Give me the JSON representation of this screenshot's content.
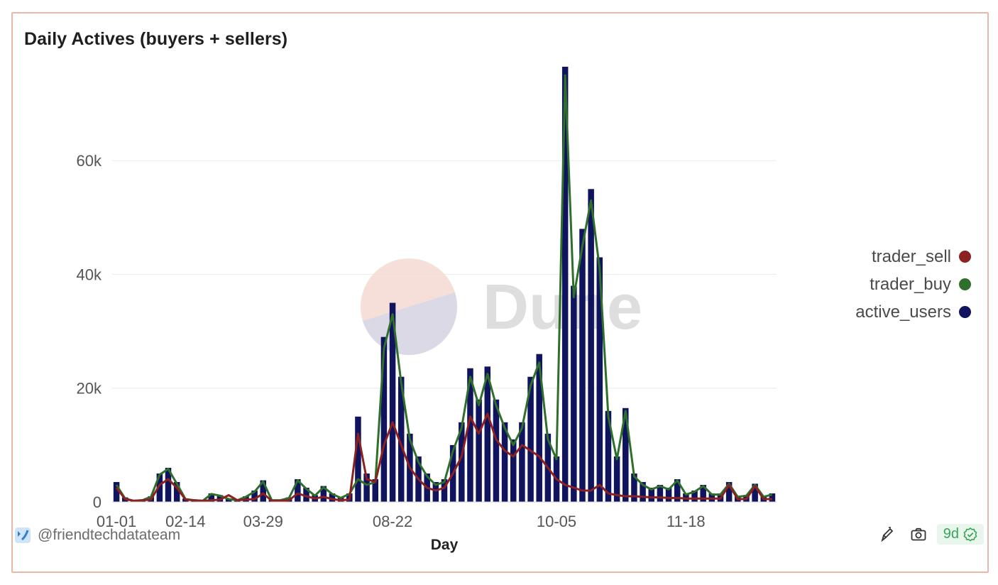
{
  "header": {
    "title": "Daily Actives (buyers + sellers)"
  },
  "watermark": {
    "text": "Dune"
  },
  "footer": {
    "author": "@friendtechdatateam",
    "age": "9d"
  },
  "colors": {
    "trader_sell": "#8b2121",
    "trader_buy": "#2f6e2b",
    "active_users": "#10135e",
    "watermark_top": "#f6d9d2",
    "watermark_bottom": "#d8d8e8"
  },
  "icons": [
    "friendtech-logo-icon",
    "share-icon",
    "camera-icon",
    "check-circle-icon"
  ],
  "chart_data": {
    "type": "bar",
    "title": "Daily Actives (buyers + sellers)",
    "xlabel": "Day",
    "ylabel": "",
    "ylim": [
      0,
      77000
    ],
    "yticks": [
      0,
      20000,
      40000,
      60000
    ],
    "ytick_labels": [
      "0",
      "20k",
      "40k",
      "60k"
    ],
    "xtick_labels": [
      "01-01",
      "02-14",
      "03-29",
      "08-22",
      "10-05",
      "11-18"
    ],
    "grid": true,
    "legend_position": "right",
    "x": [
      "01-01",
      "01-07",
      "01-14",
      "01-21",
      "01-28",
      "02-04",
      "02-08",
      "02-11",
      "02-14",
      "02-21",
      "02-28",
      "03-07",
      "03-11",
      "03-14",
      "03-18",
      "03-21",
      "03-25",
      "03-29",
      "04-01",
      "04-04",
      "04-08",
      "04-12",
      "04-16",
      "04-20",
      "04-24",
      "04-28",
      "05-01",
      "05-05",
      "08-11",
      "08-15",
      "08-18",
      "08-20",
      "08-22",
      "08-24",
      "08-26",
      "08-28",
      "08-31",
      "09-03",
      "09-06",
      "09-09",
      "09-11",
      "09-13",
      "09-15",
      "09-18",
      "09-21",
      "09-24",
      "09-26",
      "09-28",
      "09-30",
      "10-02",
      "10-04",
      "10-05",
      "10-06",
      "10-08",
      "10-10",
      "10-12",
      "10-14",
      "10-17",
      "10-20",
      "10-23",
      "10-26",
      "10-30",
      "11-03",
      "11-07",
      "11-11",
      "11-15",
      "11-18",
      "11-22",
      "11-26",
      "11-30",
      "12-04",
      "12-08",
      "12-12",
      "12-16",
      "12-20",
      "12-24",
      "12-28"
    ],
    "series": [
      {
        "name": "active_users",
        "kind": "bar",
        "values": [
          3500,
          800,
          300,
          400,
          1000,
          5000,
          6000,
          3500,
          600,
          400,
          200,
          1500,
          1200,
          600,
          300,
          1000,
          2000,
          3800,
          400,
          300,
          800,
          4000,
          2500,
          1200,
          2800,
          1500,
          800,
          1500,
          15000,
          5000,
          4000,
          29000,
          35000,
          22000,
          12000,
          8000,
          5000,
          3500,
          4000,
          10000,
          14000,
          23500,
          18000,
          23800,
          18000,
          14000,
          11000,
          14000,
          22000,
          26000,
          12000,
          8000,
          76500,
          38000,
          48000,
          55000,
          43000,
          16000,
          8000,
          16500,
          5000,
          3500,
          2500,
          3000,
          2500,
          4000,
          1500,
          2000,
          3000,
          1500,
          1500,
          3500,
          1000,
          1200,
          3200,
          1000,
          1500
        ]
      },
      {
        "name": "trader_buy",
        "kind": "line",
        "values": [
          3000,
          600,
          200,
          300,
          900,
          4800,
          5800,
          3200,
          500,
          300,
          200,
          1400,
          1100,
          500,
          300,
          900,
          1800,
          3600,
          300,
          300,
          700,
          3800,
          2300,
          1100,
          2600,
          1400,
          700,
          1400,
          4000,
          3000,
          3500,
          27000,
          33000,
          21000,
          11000,
          7000,
          4500,
          3000,
          3500,
          9000,
          13000,
          22000,
          17000,
          22500,
          17000,
          13000,
          10000,
          13000,
          20500,
          24500,
          11000,
          7500,
          75000,
          36000,
          45000,
          53000,
          41000,
          15000,
          7500,
          16000,
          4500,
          3000,
          2200,
          2800,
          2200,
          3800,
          1300,
          1800,
          2800,
          1300,
          1300,
          3200,
          900,
          1100,
          3000,
          900,
          1300
        ]
      },
      {
        "name": "trader_sell",
        "kind": "line",
        "values": [
          2500,
          500,
          200,
          300,
          400,
          3000,
          4000,
          2500,
          400,
          300,
          200,
          300,
          400,
          1200,
          300,
          400,
          500,
          1500,
          200,
          200,
          300,
          1500,
          1000,
          600,
          900,
          500,
          300,
          400,
          12000,
          4000,
          3500,
          10000,
          14000,
          10000,
          6000,
          4000,
          2500,
          2000,
          2500,
          5000,
          8000,
          15000,
          12000,
          15500,
          11000,
          9000,
          8000,
          10000,
          9000,
          8000,
          6000,
          4000,
          3000,
          2500,
          2000,
          2000,
          3000,
          1500,
          1200,
          1000,
          1000,
          900,
          800,
          800,
          700,
          700,
          600,
          600,
          600,
          600,
          600,
          3000,
          500,
          500,
          2800,
          500,
          500
        ]
      }
    ]
  }
}
